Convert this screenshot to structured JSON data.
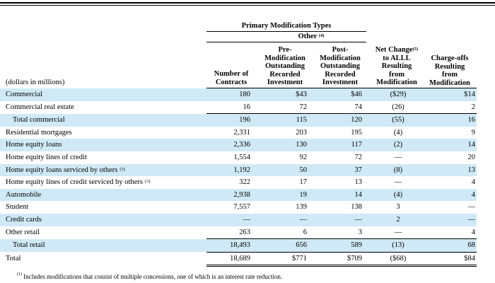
{
  "header": {
    "primary_types": "Primary Modification Types",
    "other_label": "Other",
    "other_sup": "(4)",
    "col_contracts": [
      "Number of",
      "Contracts"
    ],
    "col_pre": [
      "Pre-",
      "Modification",
      "Outstanding",
      "Recorded",
      "Investment"
    ],
    "col_post": [
      "Post-",
      "Modification",
      "Outstanding",
      "Recorded",
      "Investment"
    ],
    "col_net": [
      "Net Change",
      "to ALLL",
      "Resulting",
      "from",
      "Modification"
    ],
    "col_net_sup": "(5)",
    "col_charge": [
      "Charge-offs",
      "Resulting",
      "from",
      "Modification"
    ],
    "dollars_label": "(dollars in millions)"
  },
  "rows": [
    {
      "label": "Commercial",
      "sup": "",
      "contracts": "180",
      "pre": "$43",
      "post": "$46",
      "net": "($29)",
      "charge": "$14",
      "shaded": true,
      "type": "normal"
    },
    {
      "label": "Commercial real estate",
      "sup": "",
      "contracts": "16",
      "pre": "72",
      "post": "74",
      "net": "(26)",
      "charge": "2",
      "shaded": false,
      "type": "normal"
    },
    {
      "label": "Total commercial",
      "sup": "",
      "contracts": "196",
      "pre": "115",
      "post": "120",
      "net": "(55)",
      "charge": "16",
      "shaded": true,
      "type": "subtotal"
    },
    {
      "label": "Residential mortgages",
      "sup": "",
      "contracts": "2,331",
      "pre": "203",
      "post": "195",
      "net": "(4)",
      "charge": "9",
      "shaded": false,
      "type": "normal"
    },
    {
      "label": "Home equity loans",
      "sup": "",
      "contracts": "2,336",
      "pre": "130",
      "post": "117",
      "net": "(2)",
      "charge": "14",
      "shaded": true,
      "type": "normal"
    },
    {
      "label": "Home equity lines of credit",
      "sup": "",
      "contracts": "1,554",
      "pre": "92",
      "post": "72",
      "net": "—",
      "charge": "20",
      "shaded": false,
      "type": "normal"
    },
    {
      "label": "Home equity loans serviced by others",
      "sup": "(3)",
      "contracts": "1,192",
      "pre": "50",
      "post": "37",
      "net": "(8)",
      "charge": "13",
      "shaded": true,
      "type": "normal"
    },
    {
      "label": "Home equity lines of credit serviced by others",
      "sup": "(3)",
      "contracts": "322",
      "pre": "17",
      "post": "13",
      "net": "—",
      "charge": "4",
      "shaded": false,
      "type": "normal"
    },
    {
      "label": "Automobile",
      "sup": "",
      "contracts": "2,938",
      "pre": "19",
      "post": "14",
      "net": "(4)",
      "charge": "4",
      "shaded": true,
      "type": "normal"
    },
    {
      "label": "Student",
      "sup": "",
      "contracts": "7,557",
      "pre": "139",
      "post": "138",
      "net": "3",
      "charge": "—",
      "shaded": false,
      "type": "normal"
    },
    {
      "label": "Credit cards",
      "sup": "",
      "contracts": "—",
      "pre": "—",
      "post": "—",
      "net": "2",
      "charge": "—",
      "shaded": true,
      "type": "normal"
    },
    {
      "label": "Other retail",
      "sup": "",
      "contracts": "263",
      "pre": "6",
      "post": "3",
      "net": "—",
      "charge": "4",
      "shaded": false,
      "type": "normal"
    },
    {
      "label": "Total retail",
      "sup": "",
      "contracts": "18,493",
      "pre": "656",
      "post": "589",
      "net": "(13)",
      "charge": "68",
      "shaded": true,
      "type": "subtotal"
    },
    {
      "label": "Total",
      "sup": "",
      "contracts": "18,689",
      "pre": "$771",
      "post": "$709",
      "net": "($68)",
      "charge": "$84",
      "shaded": false,
      "type": "total"
    }
  ],
  "footnote": {
    "sup": "(1)",
    "text": "Includes modifications that consist of multiple concessions, one of which is an interest rate reduction."
  }
}
